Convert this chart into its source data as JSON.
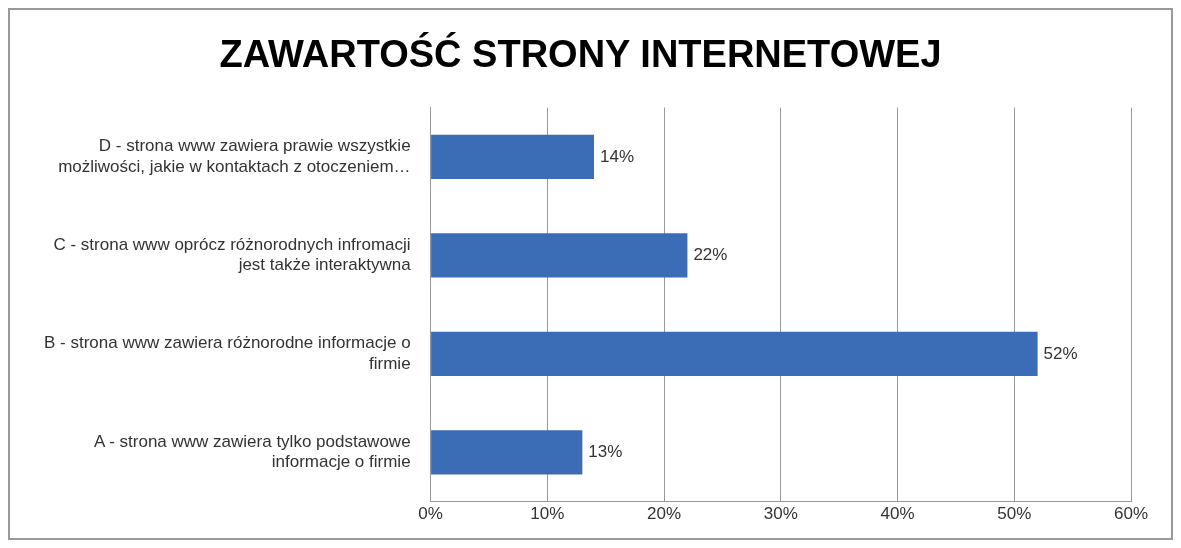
{
  "chart_data": {
    "type": "bar",
    "orientation": "horizontal",
    "title": "ZAWARTOŚĆ STRONY INTERNETOWEJ",
    "categories": [
      "D - strona www zawiera prawie wszystkie możliwości, jakie w kontaktach z otoczeniem…",
      "C - strona www oprócz różnorodnych infromacji jest także interaktywna",
      "B - strona www zawiera różnorodne informacje o firmie",
      "A - strona www zawiera tylko podstawowe informacje o firmie"
    ],
    "values": [
      14,
      22,
      52,
      13
    ],
    "color": "#3a6db5",
    "value_labels": [
      "14%",
      "22%",
      "52%",
      "13%"
    ],
    "xlim": [
      0,
      60
    ],
    "xticks": [
      {
        "value": 0,
        "label": "0%"
      },
      {
        "value": 10,
        "label": "10%"
      },
      {
        "value": 20,
        "label": "20%"
      },
      {
        "value": 30,
        "label": "30%"
      },
      {
        "value": 40,
        "label": "40%"
      },
      {
        "value": 50,
        "label": "50%"
      },
      {
        "value": 60,
        "label": "60%"
      }
    ],
    "grid": "x",
    "legend": false
  }
}
